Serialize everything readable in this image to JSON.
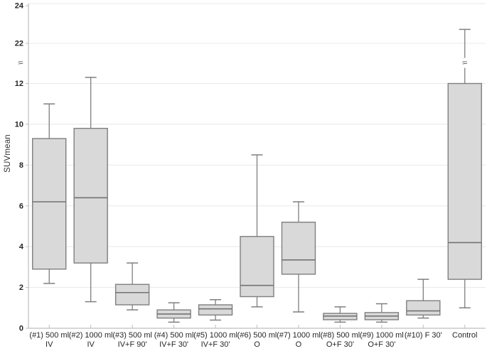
{
  "chart_data": {
    "type": "box",
    "title": "",
    "xlabel": "",
    "ylabel": "SUVmean",
    "ylim": [
      0,
      24
    ],
    "yticks": [
      0,
      2,
      4,
      6,
      8,
      10,
      12,
      22,
      24
    ],
    "grid": true,
    "legend": "none",
    "axis_break": {
      "symbol": "≈",
      "between_values": [
        13,
        22
      ],
      "note": "y-axis break between 12 and 22; Control upper whisker crosses the break"
    },
    "colors": {
      "box_fill": "#d9d9d9",
      "box_border": "#7f7f7f",
      "median_line": "#737373",
      "whisker": "#7f7f7f",
      "gridline": "#e8e8e8",
      "axis": "#bfbfbf",
      "text": "#262626"
    },
    "boxes": [
      {
        "label_line1": "(#1) 500 ml",
        "label_line2": "IV",
        "low": 2.2,
        "q1": 2.9,
        "median": 6.2,
        "q3": 9.3,
        "high": 11.0,
        "whisker_break": false
      },
      {
        "label_line1": "(#2) 1000 ml",
        "label_line2": "IV",
        "low": 1.3,
        "q1": 3.2,
        "median": 6.4,
        "q3": 9.8,
        "high": 12.3,
        "whisker_break": false
      },
      {
        "label_line1": "(#3) 500 ml",
        "label_line2": "IV+F 90'",
        "low": 0.9,
        "q1": 1.15,
        "median": 1.75,
        "q3": 2.15,
        "high": 3.2,
        "whisker_break": false
      },
      {
        "label_line1": "(#4) 500 ml",
        "label_line2": "IV+F 30'",
        "low": 0.3,
        "q1": 0.5,
        "median": 0.7,
        "q3": 0.9,
        "high": 1.25,
        "whisker_break": false
      },
      {
        "label_line1": "(#5) 1000 ml",
        "label_line2": "IV+F 30'",
        "low": 0.4,
        "q1": 0.65,
        "median": 0.95,
        "q3": 1.15,
        "high": 1.4,
        "whisker_break": false
      },
      {
        "label_line1": "(#6) 500 ml",
        "label_line2": "O",
        "low": 1.05,
        "q1": 1.55,
        "median": 2.1,
        "q3": 4.5,
        "high": 8.5,
        "whisker_break": false
      },
      {
        "label_line1": "(#7) 1000 ml",
        "label_line2": "O",
        "low": 0.8,
        "q1": 2.65,
        "median": 3.35,
        "q3": 5.2,
        "high": 6.2,
        "whisker_break": false
      },
      {
        "label_line1": "(#8) 500 ml",
        "label_line2": "O+F 30'",
        "low": 0.3,
        "q1": 0.42,
        "median": 0.6,
        "q3": 0.73,
        "high": 1.05,
        "whisker_break": false
      },
      {
        "label_line1": "(#9) 1000 ml",
        "label_line2": "O+F 30'",
        "low": 0.3,
        "q1": 0.42,
        "median": 0.6,
        "q3": 0.77,
        "high": 1.2,
        "whisker_break": false
      },
      {
        "label_line1": "(#10) F 30'",
        "label_line2": "",
        "low": 0.5,
        "q1": 0.65,
        "median": 0.85,
        "q3": 1.35,
        "high": 2.4,
        "whisker_break": false
      },
      {
        "label_line1": "Control",
        "label_line2": "",
        "low": 1.0,
        "q1": 2.4,
        "median": 4.2,
        "q3": 12.0,
        "high": 22.7,
        "whisker_break": true
      }
    ]
  }
}
